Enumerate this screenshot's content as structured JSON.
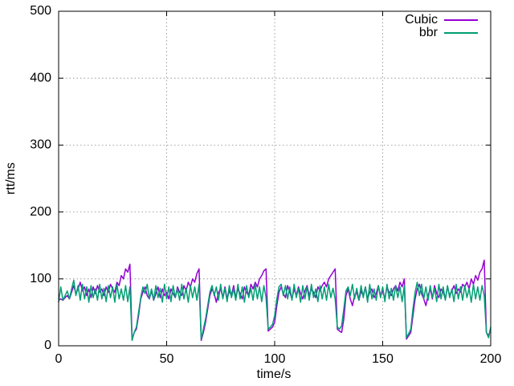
{
  "chart_data": {
    "type": "line",
    "xlabel": "time/s",
    "ylabel": "rtt/ms",
    "x": [
      0,
      1,
      2,
      3,
      4,
      5,
      6,
      7,
      8,
      9,
      10,
      11,
      12,
      13,
      14,
      15,
      16,
      17,
      18,
      19,
      20,
      21,
      22,
      23,
      24,
      25,
      26,
      27,
      28,
      29,
      30,
      31,
      32,
      33,
      34,
      35,
      36,
      37,
      38,
      39,
      40,
      41,
      42,
      43,
      44,
      45,
      46,
      47,
      48,
      49,
      50,
      51,
      52,
      53,
      54,
      55,
      56,
      57,
      58,
      59,
      60,
      61,
      62,
      63,
      64,
      65,
      66,
      67,
      68,
      69,
      70,
      71,
      72,
      73,
      74,
      75,
      76,
      77,
      78,
      79,
      80,
      81,
      82,
      83,
      84,
      85,
      86,
      87,
      88,
      89,
      90,
      91,
      92,
      93,
      94,
      95,
      96,
      97,
      98,
      99,
      100,
      101,
      102,
      103,
      104,
      105,
      106,
      107,
      108,
      109,
      110,
      111,
      112,
      113,
      114,
      115,
      116,
      117,
      118,
      119,
      120,
      121,
      122,
      123,
      124,
      125,
      126,
      127,
      128,
      129,
      130,
      131,
      132,
      133,
      134,
      135,
      136,
      137,
      138,
      139,
      140,
      141,
      142,
      143,
      144,
      145,
      146,
      147,
      148,
      149,
      150,
      151,
      152,
      153,
      154,
      155,
      156,
      157,
      158,
      159,
      160,
      161,
      162,
      163,
      164,
      165,
      166,
      167,
      168,
      169,
      170,
      171,
      172,
      173,
      174,
      175,
      176,
      177,
      178,
      179,
      180,
      181,
      182,
      183,
      184,
      185,
      186,
      187,
      188,
      189,
      190,
      191,
      192,
      193,
      194,
      195,
      196,
      197,
      198,
      199,
      200
    ],
    "series": [
      {
        "name": "Cubic",
        "color": "#9400d3",
        "values": [
          68,
          70,
          68,
          72,
          75,
          70,
          80,
          90,
          78,
          85,
          95,
          82,
          88,
          75,
          85,
          72,
          88,
          78,
          90,
          80,
          85,
          75,
          88,
          80,
          92,
          85,
          80,
          95,
          90,
          105,
          100,
          115,
          110,
          122,
          10,
          20,
          25,
          45,
          70,
          80,
          88,
          75,
          70,
          82,
          68,
          78,
          88,
          72,
          85,
          75,
          80,
          70,
          85,
          78,
          72,
          88,
          80,
          75,
          90,
          82,
          95,
          88,
          100,
          95,
          108,
          115,
          8,
          20,
          35,
          55,
          75,
          85,
          78,
          65,
          80,
          85,
          72,
          88,
          70,
          82,
          75,
          90,
          72,
          85,
          78,
          70,
          88,
          80,
          75,
          92,
          85,
          95,
          88,
          100,
          105,
          112,
          115,
          22,
          25,
          28,
          35,
          60,
          80,
          88,
          78,
          72,
          90,
          80,
          70,
          85,
          75,
          88,
          78,
          70,
          82,
          90,
          75,
          85,
          80,
          72,
          88,
          82,
          90,
          95,
          88,
          100,
          105,
          110,
          115,
          25,
          22,
          20,
          40,
          75,
          85,
          70,
          60,
          75,
          80,
          68,
          82,
          75,
          88,
          70,
          80,
          85,
          72,
          78,
          90,
          75,
          82,
          70,
          88,
          80,
          75,
          85,
          90,
          82,
          95,
          88,
          100,
          10,
          15,
          20,
          45,
          70,
          85,
          92,
          78,
          70,
          60,
          75,
          85,
          70,
          90,
          78,
          72,
          85,
          80,
          70,
          88,
          75,
          82,
          90,
          78,
          85,
          80,
          92,
          88,
          95,
          85,
          100,
          92,
          105,
          98,
          110,
          115,
          128,
          20,
          15,
          25
        ]
      },
      {
        "name": "bbr",
        "color": "#009e73",
        "values": [
          65,
          88,
          68,
          75,
          82,
          70,
          85,
          98,
          75,
          90,
          68,
          92,
          70,
          88,
          65,
          90,
          72,
          85,
          68,
          92,
          70,
          86,
          66,
          90,
          72,
          88,
          65,
          92,
          70,
          85,
          68,
          90,
          66,
          88,
          8,
          20,
          28,
          50,
          72,
          88,
          78,
          92,
          70,
          85,
          68,
          90,
          72,
          86,
          65,
          92,
          70,
          88,
          66,
          90,
          72,
          85,
          68,
          92,
          70,
          86,
          65,
          90,
          72,
          88,
          68,
          92,
          10,
          25,
          40,
          60,
          80,
          90,
          75,
          88,
          68,
          92,
          70,
          86,
          66,
          90,
          72,
          85,
          68,
          92,
          70,
          88,
          65,
          90,
          72,
          86,
          68,
          92,
          70,
          88,
          66,
          90,
          72,
          25,
          28,
          32,
          45,
          70,
          88,
          92,
          75,
          90,
          70,
          88,
          68,
          92,
          72,
          86,
          65,
          90,
          70,
          88,
          68,
          92,
          72,
          85,
          66,
          90,
          70,
          88,
          68,
          92,
          72,
          86,
          70,
          28,
          25,
          30,
          55,
          82,
          88,
          75,
          92,
          70,
          86,
          68,
          90,
          72,
          88,
          65,
          92,
          70,
          85,
          68,
          90,
          72,
          88,
          66,
          92,
          70,
          86,
          68,
          90,
          72,
          88,
          66,
          90,
          12,
          18,
          25,
          55,
          80,
          95,
          75,
          92,
          70,
          88,
          68,
          90,
          72,
          86,
          66,
          92,
          70,
          88,
          68,
          90,
          72,
          85,
          66,
          92,
          70,
          88,
          68,
          90,
          72,
          86,
          65,
          92,
          70,
          88,
          68,
          90,
          75,
          20,
          12,
          28
        ]
      }
    ],
    "xlim": [
      0,
      200
    ],
    "ylim": [
      0,
      500
    ],
    "xticks": [
      0,
      50,
      100,
      150,
      200
    ],
    "yticks": [
      0,
      100,
      200,
      300,
      400,
      500
    ],
    "grid": true,
    "legend": "top-right"
  }
}
